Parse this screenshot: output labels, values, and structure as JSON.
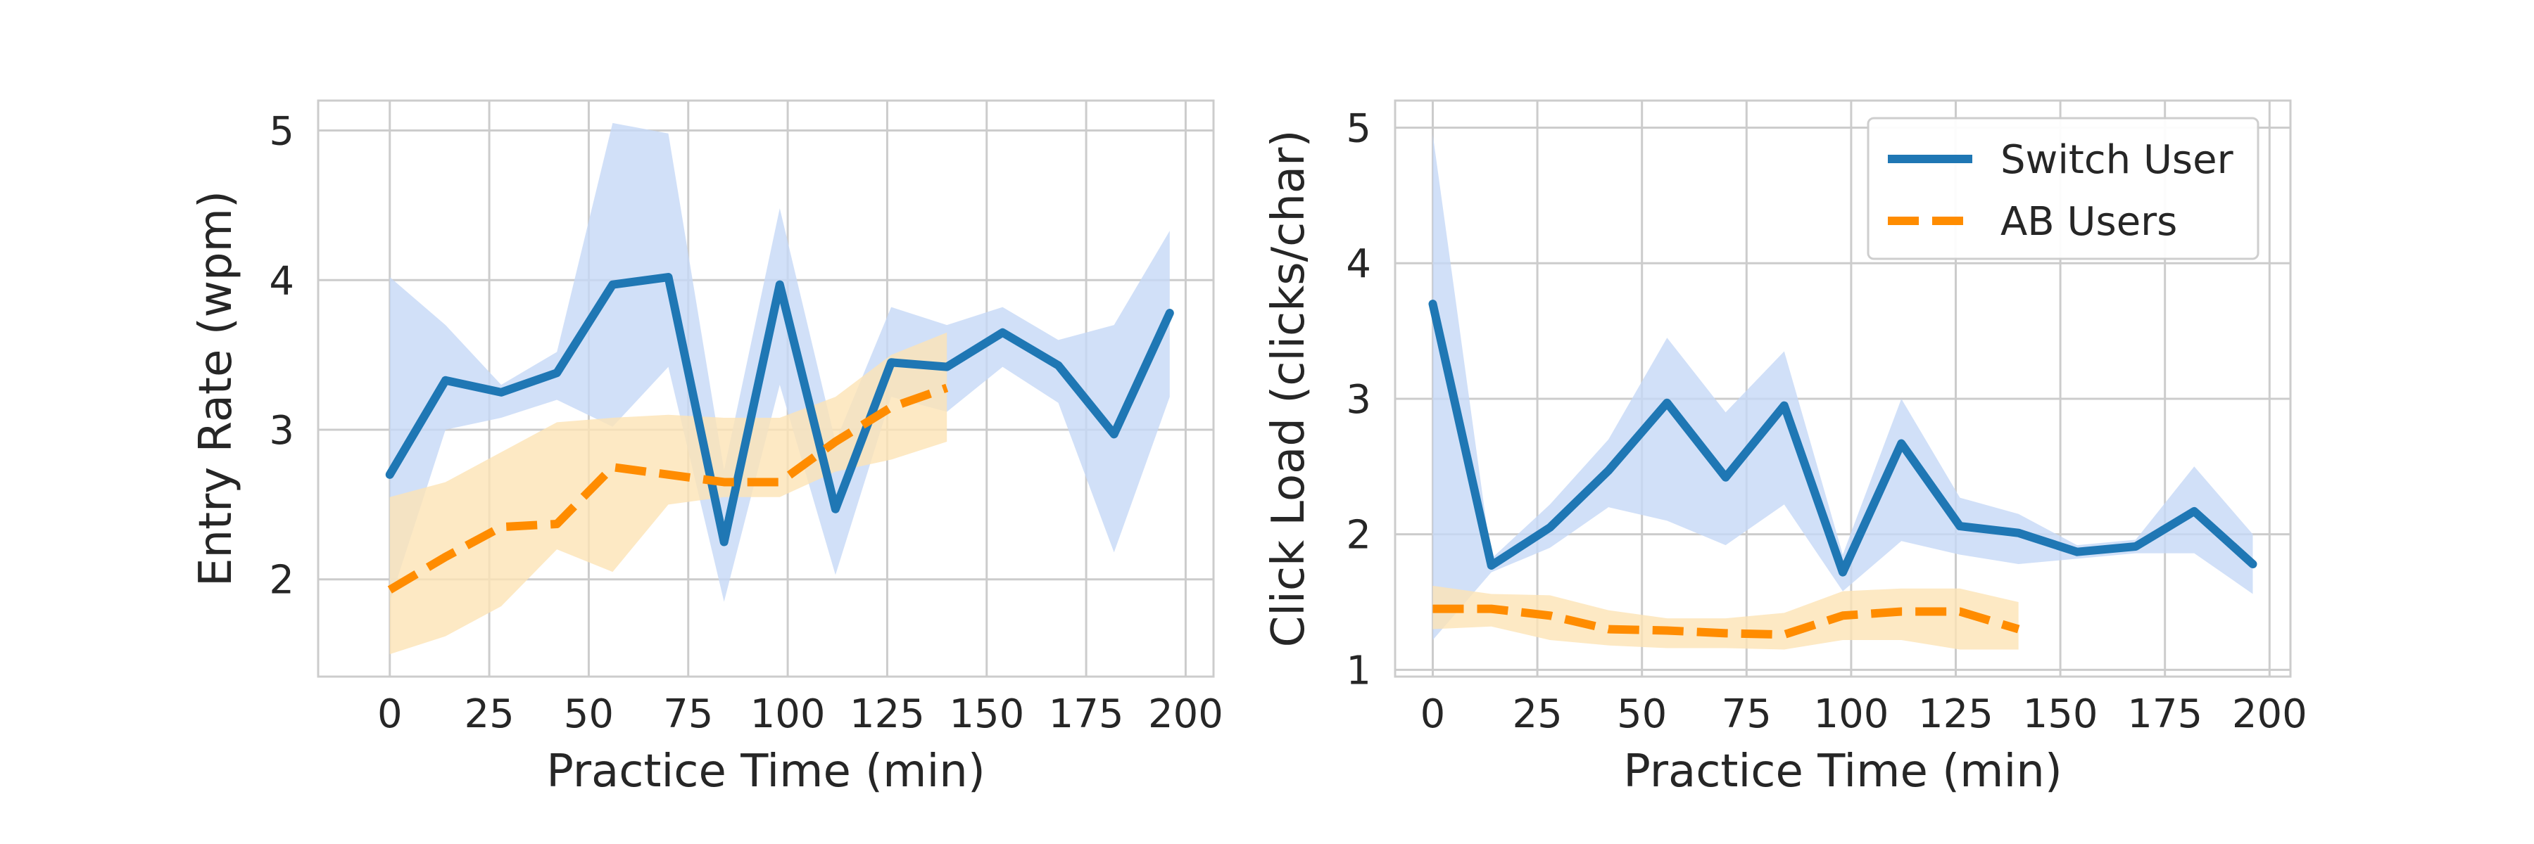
{
  "chart_data": [
    {
      "type": "line",
      "xlabel": "Practice Time (min)",
      "ylabel": "Entry Rate (wpm)",
      "xlim": [
        -18,
        207
      ],
      "ylim": [
        1.35,
        5.2
      ],
      "xticks": [
        0,
        25,
        50,
        75,
        100,
        125,
        150,
        175,
        200
      ],
      "yticks": [
        2,
        3,
        4,
        5
      ],
      "grid": true,
      "series": [
        {
          "name": "Switch User",
          "color": "#1f77b4",
          "style": "solid",
          "x": [
            0,
            14,
            28,
            42,
            56,
            70,
            84,
            98,
            112,
            126,
            140,
            154,
            168,
            182,
            196
          ],
          "y": [
            2.7,
            3.33,
            3.25,
            3.38,
            3.97,
            4.02,
            2.25,
            3.97,
            2.47,
            3.45,
            3.42,
            3.65,
            3.43,
            2.97,
            3.78
          ],
          "ci_lower": [
            1.85,
            3.0,
            3.08,
            3.2,
            3.02,
            3.42,
            1.85,
            3.3,
            2.03,
            3.22,
            3.12,
            3.42,
            3.18,
            2.18,
            3.22
          ],
          "ci_upper": [
            4.02,
            3.7,
            3.3,
            3.52,
            5.05,
            4.98,
            2.73,
            4.48,
            2.92,
            3.82,
            3.7,
            3.82,
            3.6,
            3.7,
            4.33
          ],
          "band_color": "#c6d8f6"
        },
        {
          "name": "AB Users",
          "color": "#ff8c00",
          "style": "dashed",
          "x": [
            0,
            14,
            28,
            42,
            56,
            70,
            84,
            98,
            112,
            126,
            140
          ],
          "y": [
            1.93,
            2.15,
            2.35,
            2.37,
            2.75,
            2.7,
            2.65,
            2.65,
            2.92,
            3.15,
            3.28
          ],
          "ci_lower": [
            1.5,
            1.62,
            1.82,
            2.2,
            2.05,
            2.5,
            2.55,
            2.55,
            2.72,
            2.8,
            2.92
          ],
          "ci_upper": [
            2.55,
            2.65,
            2.85,
            3.05,
            3.08,
            3.1,
            3.08,
            3.08,
            3.22,
            3.5,
            3.65
          ],
          "band_color": "#fde3b5"
        }
      ]
    },
    {
      "type": "line",
      "xlabel": "Practice Time (min)",
      "ylabel": "Click Load (clicks/char)",
      "xlim": [
        -9,
        205
      ],
      "ylim": [
        0.95,
        5.2
      ],
      "xticks": [
        0,
        25,
        50,
        75,
        100,
        125,
        150,
        175,
        200
      ],
      "yticks": [
        1,
        2,
        3,
        4,
        5
      ],
      "grid": true,
      "legend": "top-right",
      "legend_entries": [
        "Switch User",
        "AB Users"
      ],
      "series": [
        {
          "name": "Switch User",
          "color": "#1f77b4",
          "style": "solid",
          "x": [
            0,
            14,
            28,
            42,
            56,
            70,
            84,
            98,
            112,
            126,
            140,
            154,
            168,
            182,
            196
          ],
          "y": [
            3.7,
            1.77,
            2.05,
            2.47,
            2.97,
            2.42,
            2.95,
            1.72,
            2.67,
            2.06,
            2.01,
            1.87,
            1.91,
            2.17,
            1.78
          ],
          "ci_lower": [
            1.22,
            1.72,
            1.9,
            2.2,
            2.1,
            1.92,
            2.22,
            1.58,
            1.95,
            1.85,
            1.78,
            1.82,
            1.86,
            1.86,
            1.56
          ],
          "ci_upper": [
            4.95,
            1.82,
            2.22,
            2.7,
            3.45,
            2.9,
            3.35,
            1.85,
            3.0,
            2.27,
            2.15,
            1.92,
            1.96,
            2.5,
            2.0
          ],
          "band_color": "#c6d8f6"
        },
        {
          "name": "AB Users",
          "color": "#ff8c00",
          "style": "dashed",
          "x": [
            0,
            14,
            28,
            42,
            56,
            70,
            84,
            98,
            112,
            126,
            140
          ],
          "y": [
            1.45,
            1.45,
            1.4,
            1.3,
            1.29,
            1.27,
            1.26,
            1.4,
            1.43,
            1.43,
            1.3
          ],
          "ci_lower": [
            1.3,
            1.32,
            1.22,
            1.18,
            1.16,
            1.16,
            1.15,
            1.22,
            1.22,
            1.15,
            1.15
          ],
          "ci_upper": [
            1.62,
            1.56,
            1.55,
            1.44,
            1.38,
            1.38,
            1.42,
            1.58,
            1.6,
            1.6,
            1.5
          ],
          "band_color": "#fde3b5"
        }
      ]
    }
  ]
}
